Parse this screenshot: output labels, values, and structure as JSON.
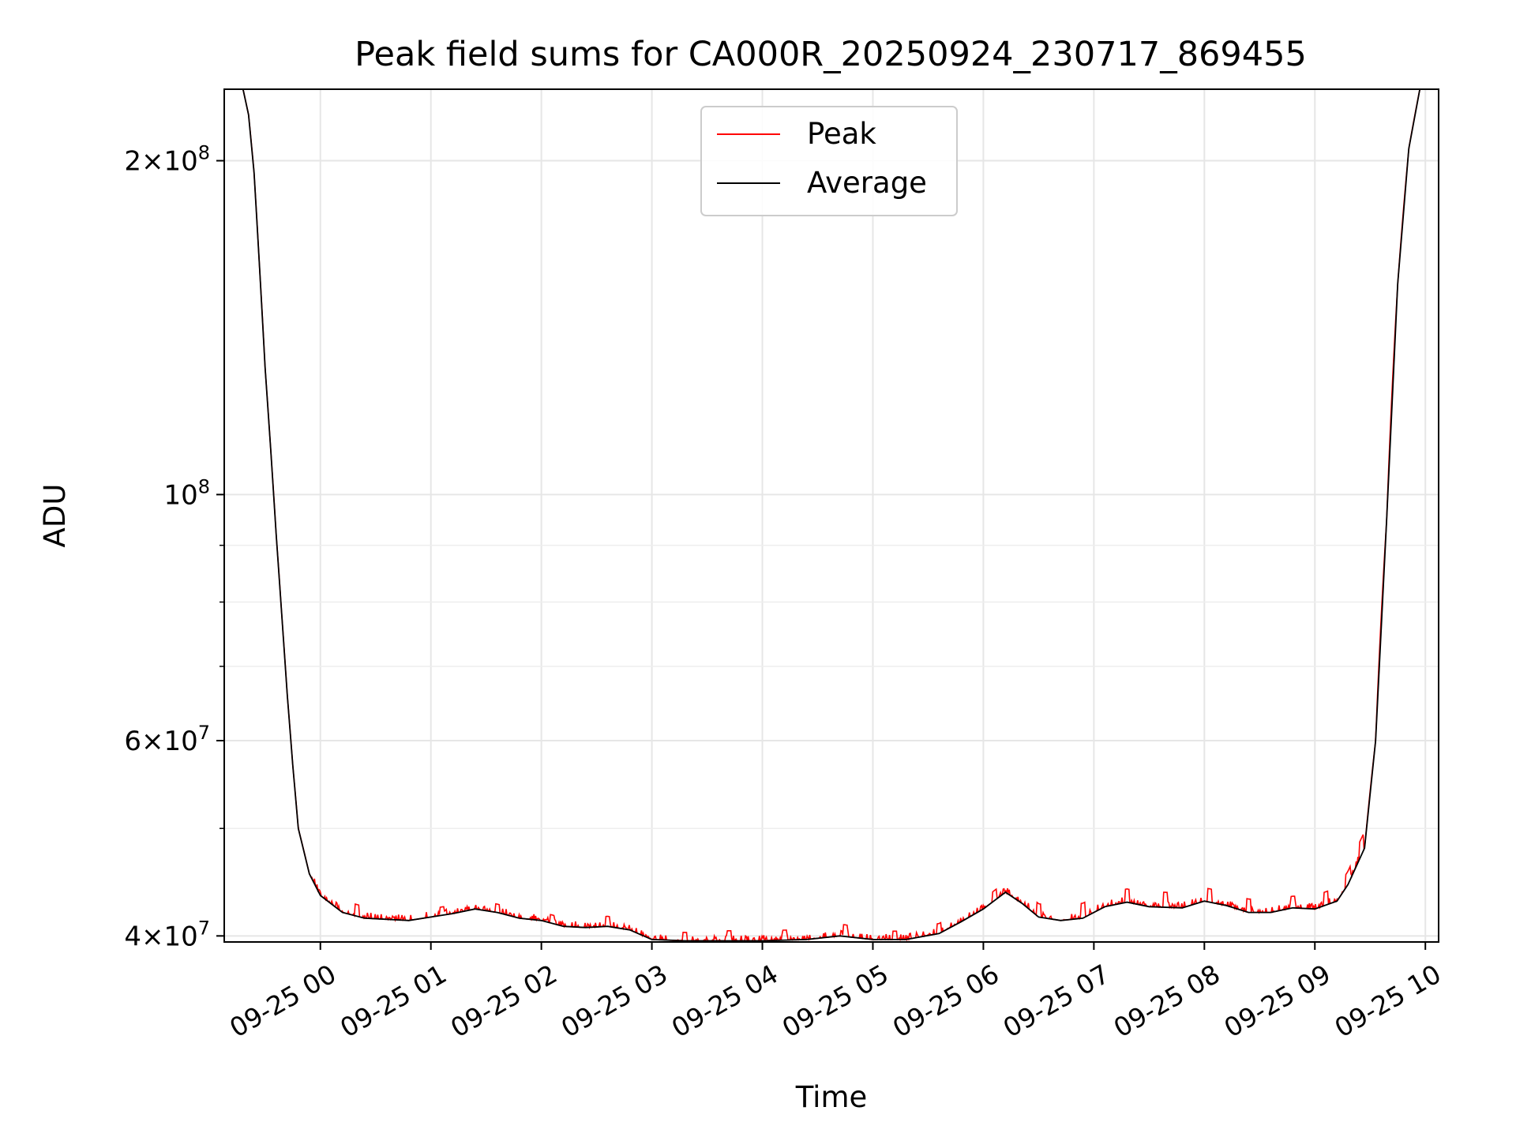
{
  "chart_data": {
    "type": "line",
    "title": "Peak field sums for CA000R_20250924_230717_869455",
    "xlabel": "Time",
    "ylabel": "ADU",
    "yscale": "log",
    "ylim": [
      39500000,
      232000000
    ],
    "xlim": [
      -0.87,
      10.12
    ],
    "grid": true,
    "legend_position": "top-center",
    "x_unit": "hours since 09-25 00:00",
    "x_ticks": [
      {
        "v": 0,
        "label": "09-25 00"
      },
      {
        "v": 1,
        "label": "09-25 01"
      },
      {
        "v": 2,
        "label": "09-25 02"
      },
      {
        "v": 3,
        "label": "09-25 03"
      },
      {
        "v": 4,
        "label": "09-25 04"
      },
      {
        "v": 5,
        "label": "09-25 05"
      },
      {
        "v": 6,
        "label": "09-25 06"
      },
      {
        "v": 7,
        "label": "09-25 07"
      },
      {
        "v": 8,
        "label": "09-25 08"
      },
      {
        "v": 9,
        "label": "09-25 09"
      },
      {
        "v": 10,
        "label": "09-25 10"
      }
    ],
    "y_major_ticks": [
      {
        "v": 40000000,
        "mant": "4",
        "exp": "7"
      },
      {
        "v": 60000000,
        "mant": "6",
        "exp": "7"
      },
      {
        "v": 100000000,
        "mant": "",
        "exp": "8"
      },
      {
        "v": 200000000,
        "mant": "2",
        "exp": "8"
      }
    ],
    "y_minor_ticks": [
      50000000,
      70000000,
      80000000,
      90000000
    ],
    "series": [
      {
        "name": "Peak",
        "color": "#ff0000",
        "spikes": [
          [
            0.33,
            0.7
          ],
          [
            1.1,
            0.5
          ],
          [
            1.6,
            0.5
          ],
          [
            2.1,
            0.5
          ],
          [
            2.6,
            0.6
          ],
          [
            3.3,
            0.5
          ],
          [
            3.7,
            0.6
          ],
          [
            4.2,
            0.6
          ],
          [
            4.75,
            0.7
          ],
          [
            5.2,
            0.5
          ],
          [
            5.6,
            0.6
          ],
          [
            6.1,
            0.6
          ],
          [
            6.5,
            0.8
          ],
          [
            6.9,
            0.9
          ],
          [
            7.3,
            0.8
          ],
          [
            7.65,
            0.9
          ],
          [
            8.05,
            0.8
          ],
          [
            8.4,
            0.8
          ],
          [
            8.8,
            0.7
          ],
          [
            9.1,
            0.8
          ],
          [
            9.3,
            0.8
          ],
          [
            9.42,
            1.0
          ]
        ]
      },
      {
        "name": "Average",
        "color": "#000000",
        "points": [
          [
            -0.87,
            232000000
          ],
          [
            -0.7,
            232000000
          ],
          [
            -0.65,
            220000000
          ],
          [
            -0.6,
            195000000
          ],
          [
            -0.55,
            160000000
          ],
          [
            -0.5,
            130000000
          ],
          [
            -0.45,
            110000000
          ],
          [
            -0.4,
            92000000
          ],
          [
            -0.35,
            78000000
          ],
          [
            -0.3,
            66000000
          ],
          [
            -0.25,
            57000000
          ],
          [
            -0.2,
            50000000
          ],
          [
            -0.1,
            45500000
          ],
          [
            0.0,
            43500000
          ],
          [
            0.2,
            42000000
          ],
          [
            0.4,
            41500000
          ],
          [
            0.6,
            41400000
          ],
          [
            0.8,
            41300000
          ],
          [
            1.0,
            41600000
          ],
          [
            1.2,
            41900000
          ],
          [
            1.4,
            42300000
          ],
          [
            1.6,
            42000000
          ],
          [
            1.8,
            41500000
          ],
          [
            2.0,
            41300000
          ],
          [
            2.2,
            40800000
          ],
          [
            2.4,
            40700000
          ],
          [
            2.6,
            40800000
          ],
          [
            2.8,
            40500000
          ],
          [
            3.0,
            39700000
          ],
          [
            3.3,
            39600000
          ],
          [
            3.6,
            39600000
          ],
          [
            4.0,
            39600000
          ],
          [
            4.4,
            39700000
          ],
          [
            4.7,
            40000000
          ],
          [
            5.0,
            39700000
          ],
          [
            5.3,
            39700000
          ],
          [
            5.6,
            40200000
          ],
          [
            5.8,
            41200000
          ],
          [
            6.0,
            42300000
          ],
          [
            6.2,
            43800000
          ],
          [
            6.35,
            42800000
          ],
          [
            6.5,
            41600000
          ],
          [
            6.7,
            41300000
          ],
          [
            6.9,
            41500000
          ],
          [
            7.1,
            42500000
          ],
          [
            7.3,
            42900000
          ],
          [
            7.5,
            42500000
          ],
          [
            7.8,
            42400000
          ],
          [
            8.0,
            43000000
          ],
          [
            8.2,
            42600000
          ],
          [
            8.4,
            42000000
          ],
          [
            8.6,
            42000000
          ],
          [
            8.8,
            42400000
          ],
          [
            9.0,
            42300000
          ],
          [
            9.2,
            43000000
          ],
          [
            9.3,
            44500000
          ],
          [
            9.45,
            48000000
          ],
          [
            9.55,
            60000000
          ],
          [
            9.65,
            95000000
          ],
          [
            9.75,
            155000000
          ],
          [
            9.85,
            205000000
          ],
          [
            9.95,
            232000000
          ],
          [
            10.12,
            232000000
          ]
        ]
      }
    ]
  }
}
